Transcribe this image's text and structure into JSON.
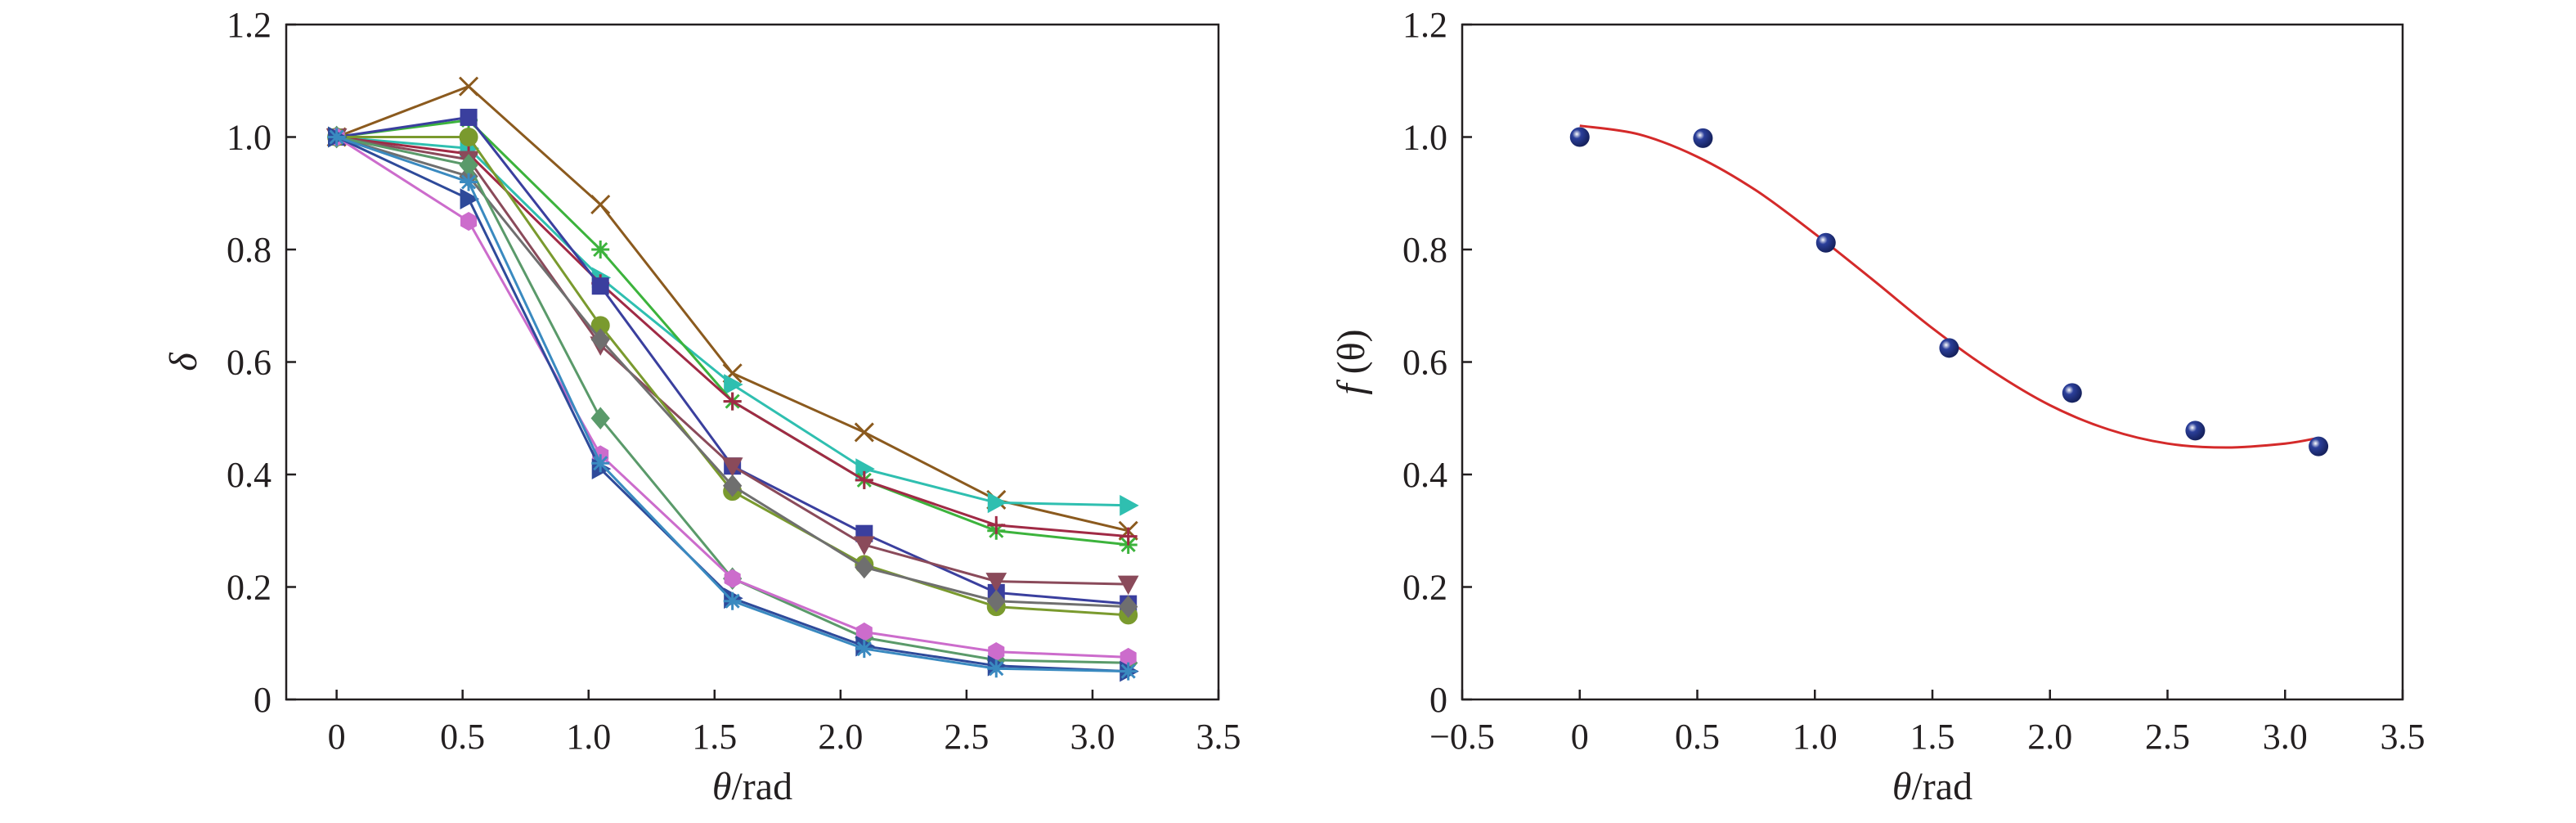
{
  "chart_data": [
    {
      "type": "line",
      "xlabel_symbol": "θ",
      "xlabel_unit": "/rad",
      "ylabel": "δ",
      "xlim": [
        -0.2,
        3.5
      ],
      "ylim": [
        0,
        1.2
      ],
      "xticks": [
        "0",
        "0.5",
        "1.0",
        "1.5",
        "2.0",
        "2.5",
        "3.0",
        "3.5"
      ],
      "yticks": [
        "0",
        "0.2",
        "0.4",
        "0.6",
        "0.8",
        "1.0",
        "1.2"
      ],
      "x": [
        0,
        0.524,
        1.047,
        1.571,
        2.094,
        2.618,
        3.142
      ],
      "grid": false,
      "legend": "none",
      "series": [
        {
          "color": "#8b5a1e",
          "marker": "x",
          "values": [
            1.0,
            1.09,
            0.88,
            0.58,
            0.475,
            0.355,
            0.3
          ]
        },
        {
          "color": "#2fbfb0",
          "marker": "tri_right",
          "values": [
            1.0,
            0.98,
            0.75,
            0.56,
            0.41,
            0.35,
            0.345
          ]
        },
        {
          "color": "#3cb33c",
          "marker": "star",
          "values": [
            1.0,
            1.03,
            0.8,
            0.53,
            0.39,
            0.3,
            0.275
          ]
        },
        {
          "color": "#a02a45",
          "marker": "plus",
          "values": [
            1.0,
            0.97,
            0.74,
            0.53,
            0.39,
            0.31,
            0.29
          ]
        },
        {
          "color": "#3a3f9e",
          "marker": "square",
          "values": [
            1.0,
            1.035,
            0.735,
            0.415,
            0.295,
            0.19,
            0.17
          ]
        },
        {
          "color": "#8a4a5a",
          "marker": "tri_down",
          "values": [
            1.0,
            0.96,
            0.63,
            0.415,
            0.275,
            0.21,
            0.205
          ]
        },
        {
          "color": "#7a9a2e",
          "marker": "circle",
          "values": [
            1.0,
            1.0,
            0.665,
            0.37,
            0.24,
            0.165,
            0.15
          ]
        },
        {
          "color": "#6f6f6f",
          "marker": "diamond",
          "values": [
            1.0,
            0.93,
            0.64,
            0.38,
            0.235,
            0.175,
            0.165
          ]
        },
        {
          "color": "#5a9a6a",
          "marker": "diamond",
          "values": [
            1.0,
            0.95,
            0.5,
            0.215,
            0.11,
            0.07,
            0.065
          ]
        },
        {
          "color": "#cc6ccc",
          "marker": "hexagon",
          "values": [
            1.0,
            0.85,
            0.435,
            0.215,
            0.12,
            0.085,
            0.075
          ]
        },
        {
          "color": "#2e4a9a",
          "marker": "tri_right",
          "values": [
            1.0,
            0.89,
            0.41,
            0.18,
            0.095,
            0.06,
            0.05
          ]
        },
        {
          "color": "#3a8ac0",
          "marker": "star",
          "values": [
            1.0,
            0.92,
            0.42,
            0.175,
            0.09,
            0.055,
            0.05
          ]
        }
      ]
    },
    {
      "type": "scatter",
      "xlabel_symbol": "θ",
      "xlabel_unit": "/rad",
      "ylabel_fn": "f",
      "ylabel_arg": "(θ)",
      "xlim": [
        -0.5,
        3.5
      ],
      "ylim": [
        0,
        1.2
      ],
      "xticks": [
        "−0.5",
        "0",
        "0.5",
        "1.0",
        "1.5",
        "2.0",
        "2.5",
        "3.0",
        "3.5"
      ],
      "yticks": [
        "0",
        "0.2",
        "0.4",
        "0.6",
        "0.8",
        "1.0",
        "1.2"
      ],
      "grid": false,
      "legend": "none",
      "points": {
        "color": "#2b3f9a",
        "x": [
          0,
          0.524,
          1.047,
          1.571,
          2.094,
          2.618,
          3.142
        ],
        "y": [
          1.0,
          0.998,
          0.812,
          0.625,
          0.545,
          0.478,
          0.45
        ]
      },
      "fit_curve": {
        "color": "#d42a2a",
        "x": [
          0,
          0.25,
          0.5,
          0.75,
          1.0,
          1.25,
          1.5,
          1.75,
          2.0,
          2.25,
          2.5,
          2.75,
          3.0,
          3.14
        ],
        "y": [
          1.02,
          1.005,
          0.965,
          0.905,
          0.828,
          0.745,
          0.66,
          0.585,
          0.523,
          0.48,
          0.455,
          0.448,
          0.455,
          0.465
        ]
      }
    }
  ]
}
